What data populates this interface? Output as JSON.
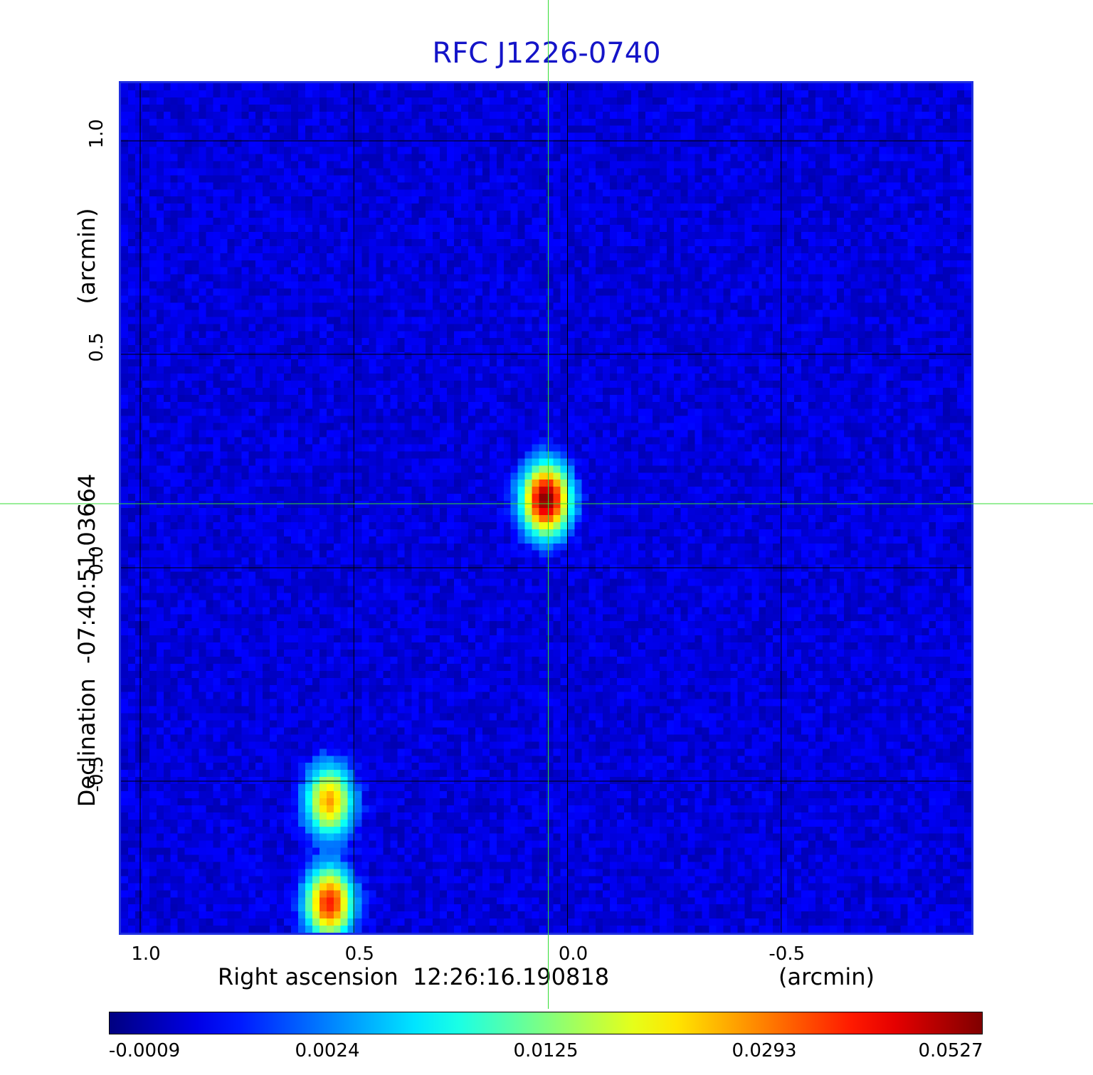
{
  "chart_data": {
    "type": "heatmap",
    "title": "RFC J1226-0740",
    "xlabel": "Right ascension  12:26:16.190818",
    "xunit": "(arcmin)",
    "ylabel": "Declination  -07:40:51.03664",
    "yunit": "(arcmin)",
    "xlim": [
      1.05,
      -0.95
    ],
    "ylim": [
      -0.86,
      1.14
    ],
    "x_reversed": true,
    "x_ticks": [
      {
        "value": 1.0,
        "label": "1.0"
      },
      {
        "value": 0.5,
        "label": "0.5"
      },
      {
        "value": 0.0,
        "label": "0.0"
      },
      {
        "value": -0.5,
        "label": "-0.5"
      }
    ],
    "y_ticks": [
      {
        "value": 1.0,
        "label": "1.0"
      },
      {
        "value": 0.5,
        "label": "0.5"
      },
      {
        "value": 0.0,
        "label": "0.0"
      },
      {
        "value": -0.5,
        "label": "-0.5"
      }
    ],
    "grid": true,
    "crosshair": {
      "x": 0.045,
      "y": 0.15
    },
    "sources": [
      {
        "x": 0.05,
        "y": 0.16,
        "peak": 0.0527
      },
      {
        "x": 0.56,
        "y": -0.55,
        "peak": 0.027
      },
      {
        "x": 0.56,
        "y": -0.79,
        "peak": 0.038
      }
    ],
    "colormap": "jet",
    "colorbar": {
      "min": -0.0009,
      "max": 0.0527,
      "ticks": [
        "-0.0009",
        "0.0024",
        "0.0125",
        "0.0293",
        "0.0527"
      ]
    }
  }
}
